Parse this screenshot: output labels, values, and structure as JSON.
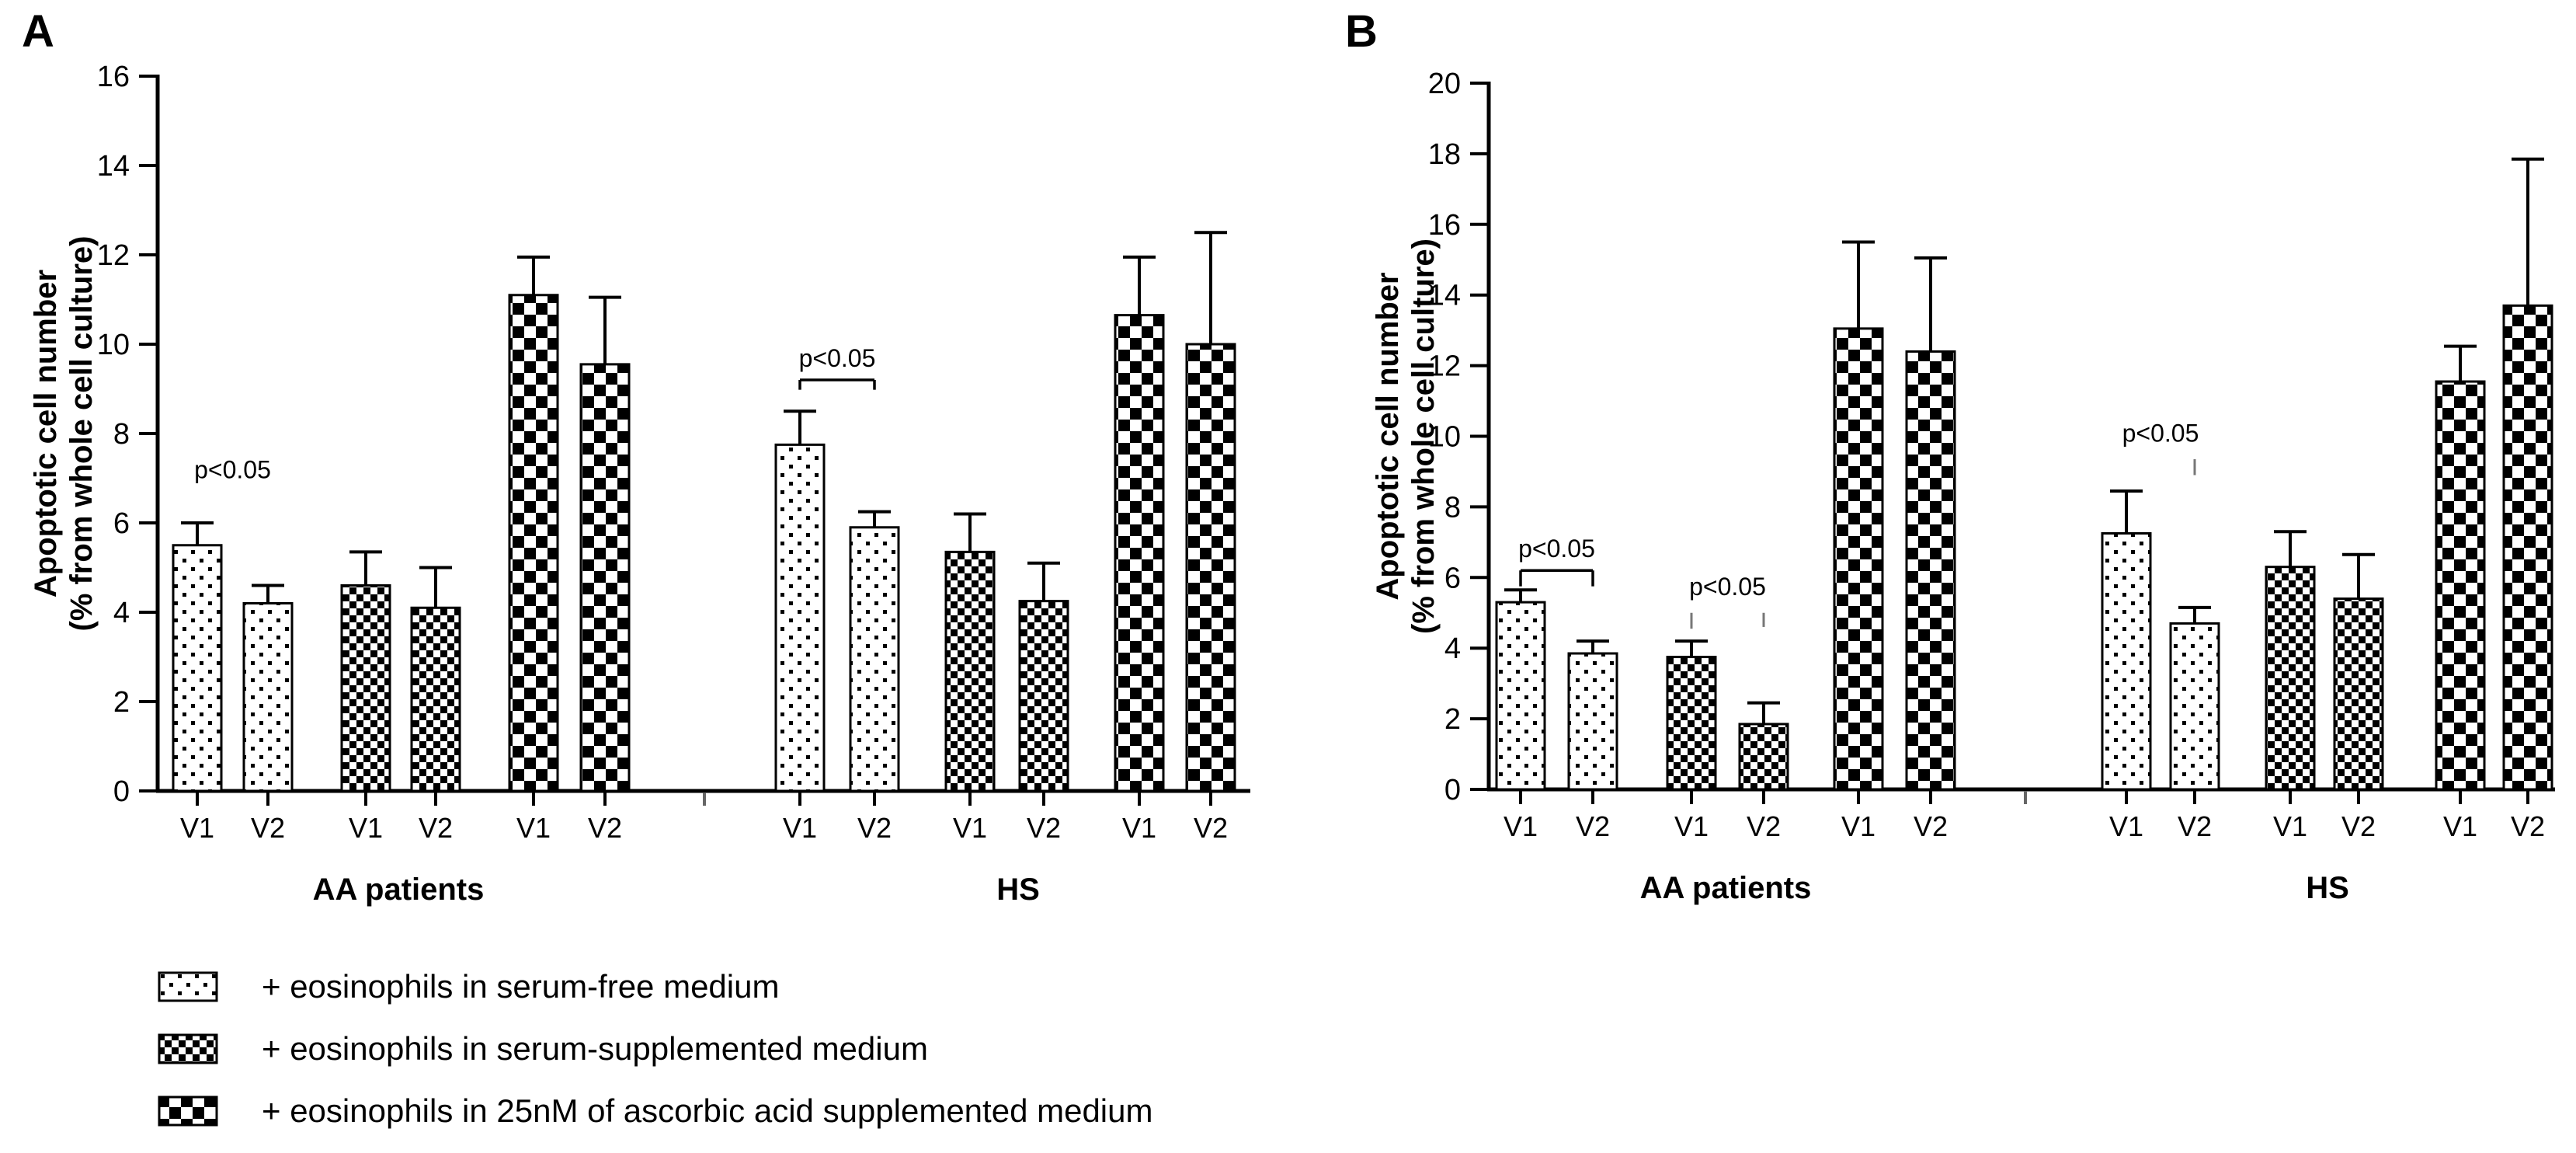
{
  "figure": {
    "panels": [
      {
        "letter": "A"
      },
      {
        "letter": "B"
      }
    ]
  },
  "legend": {
    "items": [
      {
        "pattern": "dots",
        "label": "+ eosinophils in serum-free medium"
      },
      {
        "pattern": "fine-checker",
        "label": "+ eosinophils in serum-supplemented medium"
      },
      {
        "pattern": "big-checker",
        "label": "+ eosinophils in 25nM of ascorbic acid supplemented medium"
      }
    ]
  },
  "chart_data": [
    {
      "id": "A",
      "type": "bar",
      "title": "",
      "ylabel_lines": [
        "Apoptotic cell number",
        "(% from whole cell culture)"
      ],
      "ylim": [
        0,
        16
      ],
      "ytick_step": 2,
      "grid": false,
      "legend_position": "below-left",
      "series_patterns": [
        "dots",
        "dots",
        "fine-checker",
        "fine-checker",
        "big-checker",
        "big-checker"
      ],
      "groups": [
        {
          "label": "AA patients",
          "bar_labels": [
            "V1",
            "V2",
            "V1",
            "V2",
            "V1",
            "V2"
          ],
          "values": [
            5.5,
            4.2,
            4.6,
            4.1,
            11.1,
            9.55
          ],
          "errors_up": [
            0.5,
            0.4,
            0.75,
            0.9,
            0.85,
            1.5
          ]
        },
        {
          "label": "HS",
          "bar_labels": [
            "V1",
            "V2",
            "V1",
            "V2",
            "V1",
            "V2"
          ],
          "values": [
            7.75,
            5.9,
            5.35,
            4.25,
            10.65,
            10.0
          ],
          "errors_up": [
            0.75,
            0.35,
            0.85,
            0.85,
            1.3,
            2.5
          ]
        }
      ],
      "annotations": [
        {
          "label": "p<0.05",
          "group": 0,
          "bars": [
            0,
            1
          ],
          "text_y": 7.0
        },
        {
          "label": "p<0.05",
          "group": 1,
          "bars": [
            0,
            1
          ],
          "bracket_y": 9.2,
          "bracket_tick": 0.22
        }
      ]
    },
    {
      "id": "B",
      "type": "bar",
      "title": "",
      "ylabel_lines": [
        "Apoptotic cell number",
        "(% from whole cell culture)"
      ],
      "ylim": [
        0,
        20
      ],
      "ytick_step": 2,
      "grid": false,
      "legend_position": "none",
      "series_patterns": [
        "dots",
        "dots",
        "fine-checker",
        "fine-checker",
        "big-checker",
        "big-checker"
      ],
      "groups": [
        {
          "label": "AA patients",
          "bar_labels": [
            "V1",
            "V2",
            "V1",
            "V2",
            "V1",
            "V2"
          ],
          "values": [
            5.3,
            3.85,
            3.75,
            1.85,
            13.05,
            12.4
          ],
          "errors_up": [
            0.35,
            0.35,
            0.45,
            0.6,
            2.45,
            2.65
          ]
        },
        {
          "label": "HS",
          "bar_labels": [
            "V1",
            "V2",
            "V1",
            "V2",
            "V1",
            "V2"
          ],
          "values": [
            7.25,
            4.7,
            6.3,
            5.4,
            11.55,
            13.7
          ],
          "errors_up": [
            1.2,
            0.45,
            1.0,
            1.25,
            1.0,
            4.15
          ]
        }
      ],
      "annotations": [
        {
          "label": "p<0.05",
          "group": 0,
          "bars": [
            0,
            1
          ],
          "bracket_y": 6.2,
          "bracket_tick": 0.45
        },
        {
          "label": "p<0.05",
          "group": 0,
          "bars": [
            2,
            3
          ],
          "text_y": 5.5,
          "ticks": [
            {
              "bar": 2,
              "from": 4.55,
              "to": 5.0
            },
            {
              "bar": 3,
              "from": 4.6,
              "to": 5.0
            }
          ]
        },
        {
          "label": "p<0.05",
          "group": 1,
          "bars": [
            0,
            1
          ],
          "text_y": 9.85,
          "ticks": [
            {
              "bar": 1,
              "from": 8.9,
              "to": 9.35
            }
          ]
        }
      ]
    }
  ],
  "colors": {
    "ink": "#000000",
    "background": "#ffffff",
    "annotation_tick": "#777777"
  }
}
